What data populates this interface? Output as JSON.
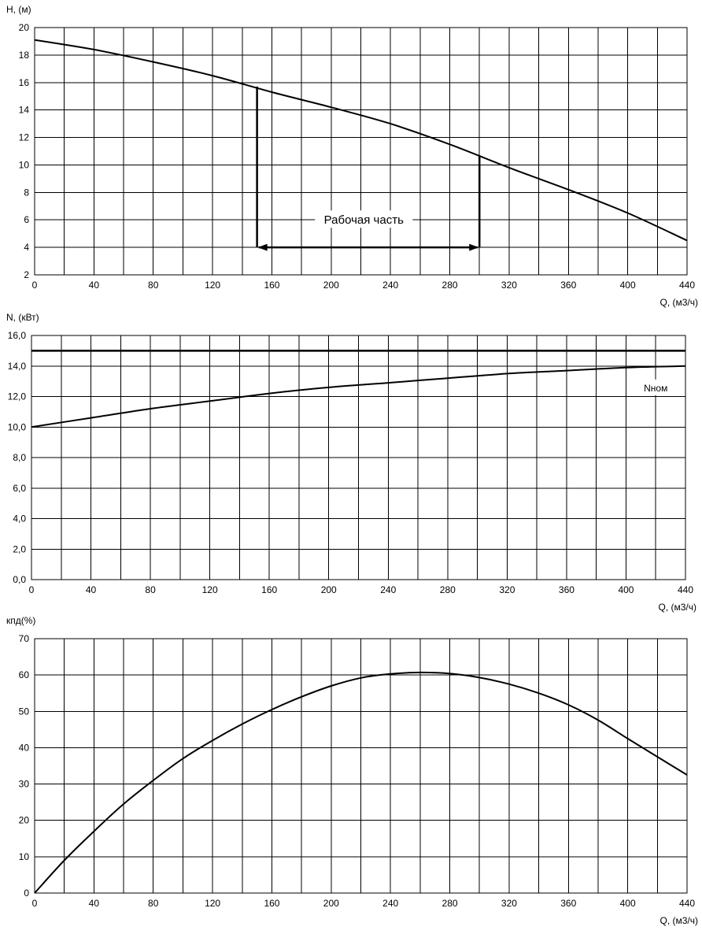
{
  "chart_data": [
    {
      "type": "line",
      "ylabel": "H, (м)",
      "xlabel": "Q, (м3/ч)",
      "xlim": [
        0,
        440
      ],
      "ylim": [
        2,
        20
      ],
      "x_ticks": [
        0,
        40,
        80,
        120,
        160,
        200,
        240,
        280,
        320,
        360,
        400,
        440
      ],
      "y_ticks": [
        2,
        4,
        6,
        8,
        10,
        12,
        14,
        16,
        18,
        20
      ],
      "x_tick_labels": [
        "0",
        "40",
        "80",
        "120",
        "160",
        "200",
        "240",
        "280",
        "320",
        "360",
        "400",
        "440"
      ],
      "y_tick_labels": [
        "2",
        "4",
        "6",
        "8",
        "10",
        "12",
        "14",
        "16",
        "18",
        "20"
      ],
      "grid": true,
      "series": [
        {
          "x": [
            0,
            40,
            80,
            120,
            160,
            200,
            240,
            280,
            320,
            360,
            400,
            440
          ],
          "y": [
            19.1,
            18.4,
            17.5,
            16.5,
            15.3,
            14.2,
            13.0,
            11.5,
            9.8,
            8.2,
            6.5,
            4.5
          ]
        }
      ],
      "annotations": [
        {
          "text": "Рабочая часть",
          "x_range": [
            150,
            300
          ],
          "at_y": 4,
          "text_x": 222,
          "text_y": 6
        }
      ],
      "markers": [
        {
          "x": 150,
          "y_from": 4,
          "y_to": 15.7
        },
        {
          "x": 300,
          "y_from": 4,
          "y_to": 10.7
        }
      ]
    },
    {
      "type": "line",
      "ylabel": "N, (кВт)",
      "xlabel": "Q, (м3/ч)",
      "xlim": [
        0,
        440
      ],
      "ylim": [
        0,
        16
      ],
      "x_ticks": [
        0,
        40,
        80,
        120,
        160,
        200,
        240,
        280,
        320,
        360,
        400,
        440
      ],
      "y_ticks": [
        0,
        2,
        4,
        6,
        8,
        10,
        12,
        14,
        16
      ],
      "x_tick_labels": [
        "0",
        "40",
        "80",
        "120",
        "160",
        "200",
        "240",
        "280",
        "320",
        "360",
        "400",
        "440"
      ],
      "y_tick_labels": [
        "0,0",
        "2,0",
        "4,0",
        "6,0",
        "8,0",
        "10,0",
        "12,0",
        "14,0",
        "16,0"
      ],
      "grid": true,
      "series": [
        {
          "x": [
            0,
            40,
            80,
            120,
            160,
            200,
            240,
            280,
            320,
            360,
            400,
            440
          ],
          "y": [
            10.0,
            10.6,
            11.2,
            11.7,
            12.2,
            12.6,
            12.9,
            13.2,
            13.5,
            13.7,
            13.9,
            14.0
          ]
        },
        {
          "name": "Nном",
          "x": [
            0,
            440
          ],
          "y": [
            15.0,
            15.0
          ]
        }
      ],
      "annotations": [
        {
          "text": "Nном",
          "text_x": 420,
          "text_y": 12.6
        }
      ]
    },
    {
      "type": "line",
      "ylabel": "кпд(%)",
      "xlabel": "Q, (м3/ч)",
      "xlim": [
        0,
        440
      ],
      "ylim": [
        0,
        70
      ],
      "x_ticks": [
        0,
        40,
        80,
        120,
        160,
        200,
        240,
        280,
        320,
        360,
        400,
        440
      ],
      "y_ticks": [
        0,
        10,
        20,
        30,
        40,
        50,
        60,
        70
      ],
      "x_tick_labels": [
        "0",
        "40",
        "80",
        "120",
        "160",
        "200",
        "240",
        "280",
        "320",
        "360",
        "400",
        "440"
      ],
      "y_tick_labels": [
        "0",
        "10",
        "20",
        "30",
        "40",
        "50",
        "60",
        "70"
      ],
      "grid": true,
      "series": [
        {
          "x": [
            0,
            20,
            40,
            60,
            80,
            100,
            120,
            140,
            160,
            180,
            200,
            220,
            240,
            260,
            280,
            300,
            320,
            340,
            360,
            380,
            400,
            420,
            440
          ],
          "y": [
            0,
            9,
            17,
            24.5,
            31,
            37,
            42,
            46.5,
            50.5,
            54,
            57,
            59.2,
            60.3,
            60.7,
            60.4,
            59.3,
            57.5,
            55,
            51.8,
            47.6,
            42.5,
            37.5,
            32.5
          ]
        }
      ]
    }
  ]
}
